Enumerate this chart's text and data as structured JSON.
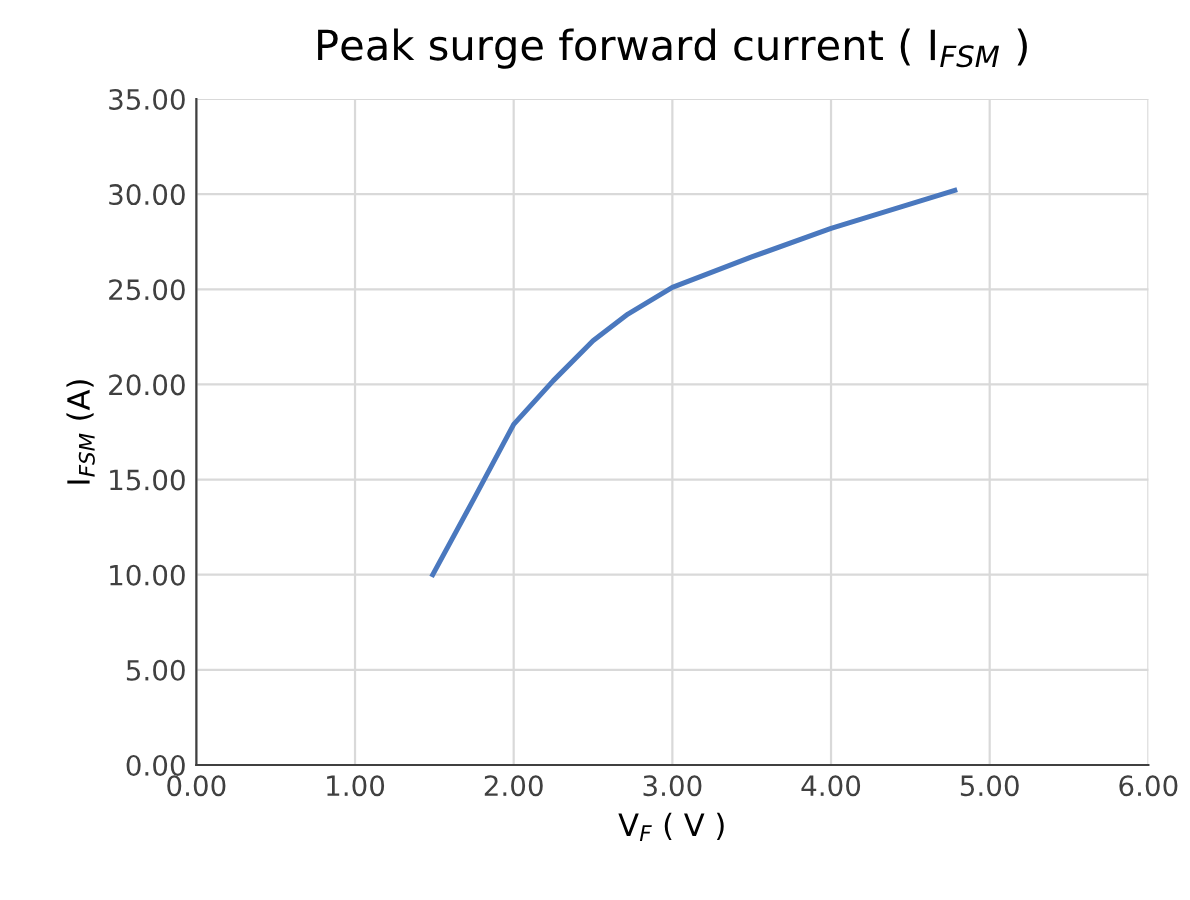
{
  "chart_data": {
    "type": "line",
    "title": "Peak surge forward current ( I$_{FSM}$ )",
    "xlabel": "V$_{F}$ ( V )",
    "ylabel": "I$_{FSM}$ (A)",
    "series": [
      {
        "color": "#4a78be",
        "x": [
          1.49,
          1.75,
          2.0,
          2.25,
          2.5,
          2.72,
          3.0,
          3.5,
          4.0,
          4.78
        ],
        "values": [
          10.0,
          14.0,
          17.9,
          20.2,
          22.3,
          23.7,
          25.1,
          26.7,
          28.2,
          30.2
        ]
      }
    ],
    "xlim": [
      0,
      6
    ],
    "ylim": [
      0,
      35
    ],
    "xticks": [
      {
        "value": 0,
        "label": "0.00"
      },
      {
        "value": 1,
        "label": "1.00"
      },
      {
        "value": 2,
        "label": "2.00"
      },
      {
        "value": 3,
        "label": "3.00"
      },
      {
        "value": 4,
        "label": "4.00"
      },
      {
        "value": 5,
        "label": "5.00"
      },
      {
        "value": 6,
        "label": "6.00"
      }
    ],
    "yticks": [
      {
        "value": 0,
        "label": "0.00"
      },
      {
        "value": 5,
        "label": "5.00"
      },
      {
        "value": 10,
        "label": "10.00"
      },
      {
        "value": 15,
        "label": "15.00"
      },
      {
        "value": 20,
        "label": "20.00"
      },
      {
        "value": 25,
        "label": "25.00"
      },
      {
        "value": 30,
        "label": "30.00"
      },
      {
        "value": 35,
        "label": "35.00"
      }
    ],
    "grid": true,
    "marker": "none",
    "line_style": "solid"
  }
}
